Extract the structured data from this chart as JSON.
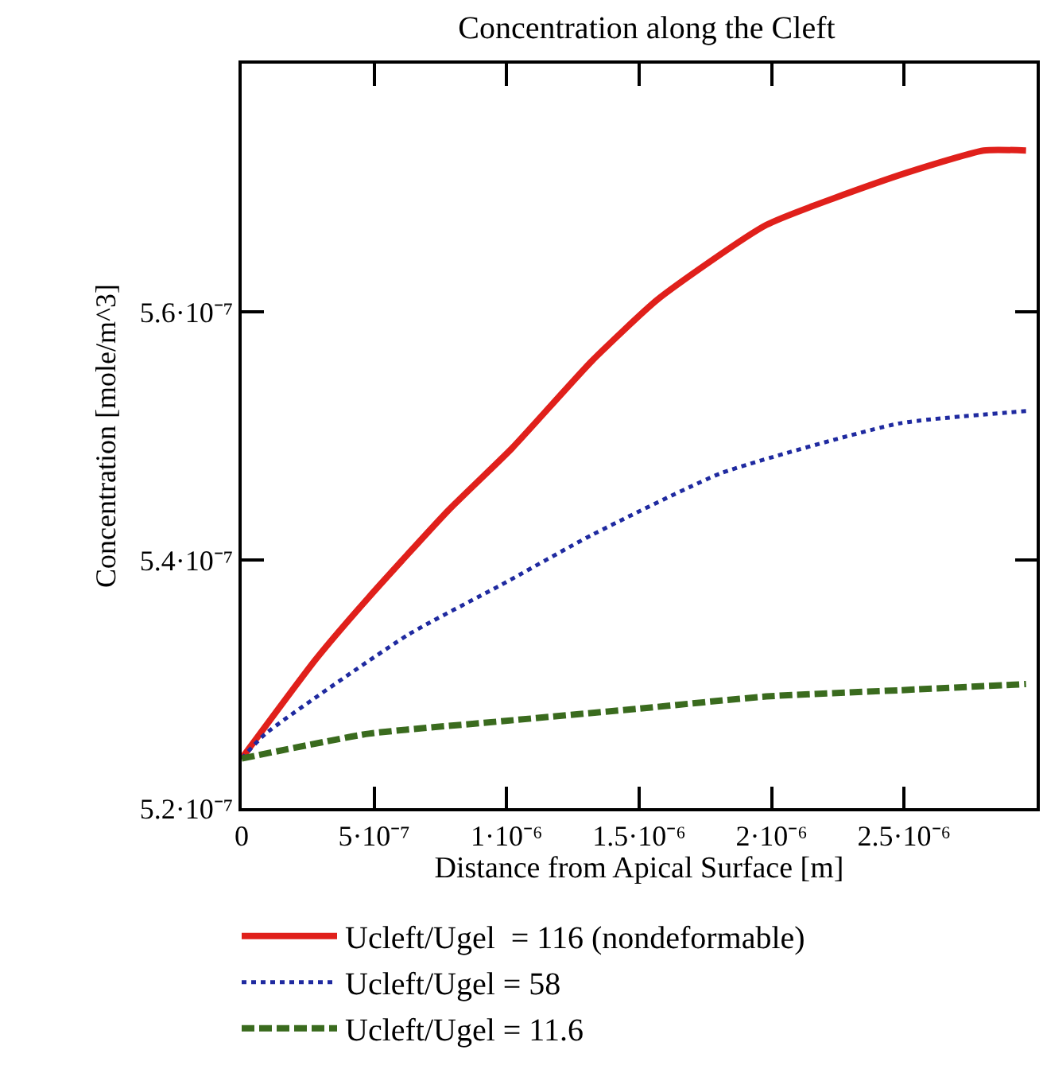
{
  "chart_data": {
    "type": "line",
    "title": "Concentration along the Cleft",
    "xlabel": "Distance from Apical Surface [m]",
    "ylabel": "Concentration [mole/m^3]",
    "xlim": [
      0,
      3e-06
    ],
    "ylim": [
      5.2e-07,
      5.8e-07
    ],
    "xticks": [
      0,
      {
        "value": 5e-07,
        "label": "5·10⁻⁷"
      },
      {
        "value": 1e-06,
        "label": "1·10⁻⁶"
      },
      {
        "value": 1.5e-06,
        "label": "1.5·10⁻⁶"
      },
      {
        "value": 2e-06,
        "label": "2·10⁻⁶"
      },
      {
        "value": 2.5e-06,
        "label": "2.5·10⁻⁶"
      }
    ],
    "yticks": [
      {
        "value": 5.2e-07,
        "label": "5.2·10⁻⁷"
      },
      {
        "value": 5.4e-07,
        "label": "5.4·10⁻⁷"
      },
      {
        "value": 5.6e-07,
        "label": "5.6·10⁻⁷"
      }
    ],
    "legend": "bottom",
    "marker": "none",
    "series": [
      {
        "name": "Ucleft/Ugel  = 116 (nondeformable)",
        "color": "#e0201b",
        "line_style": "solid",
        "x": [
          0,
          2.8e-07,
          4.8e-07,
          7.8e-07,
          1.02e-06,
          1.32e-06,
          1.57e-06,
          1.98e-06,
          2.48e-06,
          2.8e-06,
          2.96e-06
        ],
        "values": [
          5.24e-07,
          5.32e-07,
          5.37e-07,
          5.44e-07,
          5.49e-07,
          5.56e-07,
          5.61e-07,
          5.67e-07,
          5.71e-07,
          5.73e-07,
          5.73e-07
        ]
      },
      {
        "name": "Ucleft/Ugel = 58",
        "color": "#1f2aa0",
        "line_style": "dotted",
        "x": [
          0,
          9e-08,
          6.3e-07,
          9.8e-07,
          1.32e-06,
          1.81e-06,
          2.48e-06,
          2.96e-06
        ],
        "values": [
          5.24e-07,
          5.26e-07,
          5.34e-07,
          5.38e-07,
          5.42e-07,
          5.47e-07,
          5.51e-07,
          5.52e-07
        ]
      },
      {
        "name": "Ucleft/Ugel = 11.6",
        "color": "#3a6b1e",
        "line_style": "dashed",
        "x": [
          0,
          4.8e-07,
          9.8e-07,
          1.49e-06,
          1.98e-06,
          2.48e-06,
          2.96e-06
        ],
        "values": [
          5.24e-07,
          5.26e-07,
          5.27e-07,
          5.28e-07,
          5.29e-07,
          5.295e-07,
          5.3e-07
        ]
      }
    ]
  }
}
